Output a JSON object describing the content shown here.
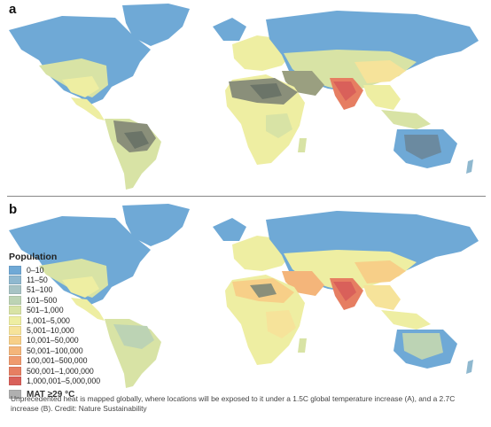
{
  "panels": [
    {
      "label": "a"
    },
    {
      "label": "b"
    }
  ],
  "legend": {
    "title": "Population",
    "categories": [
      {
        "label": "0–10",
        "color": "#6fa9d6"
      },
      {
        "label": "11–50",
        "color": "#8fb8cf"
      },
      {
        "label": "51–100",
        "color": "#a7c3c4"
      },
      {
        "label": "101–500",
        "color": "#bcd3b4"
      },
      {
        "label": "501–1,000",
        "color": "#d8e3a5"
      },
      {
        "label": "1,001–5,000",
        "color": "#eeeea2"
      },
      {
        "label": "5,001–10,000",
        "color": "#f6e39a"
      },
      {
        "label": "10,001–50,000",
        "color": "#f7cf88"
      },
      {
        "label": "50,001–100,000",
        "color": "#f4b57a"
      },
      {
        "label": "100,001–500,000",
        "color": "#ef9a6e"
      },
      {
        "label": "500,001–1,000,000",
        "color": "#e67e62"
      },
      {
        "label": "1,000,001–5,000,000",
        "color": "#d9605a"
      }
    ],
    "mat_label": "MAT ≥29 °C",
    "mat_color": "#b0b0b0"
  },
  "caption": "Unprecedented heat is mapped globally, where locations will be exposed to it under a 1.5C global temperature increase (A), and a 2.7C increase (B). Credit: Nature Sustainability"
}
